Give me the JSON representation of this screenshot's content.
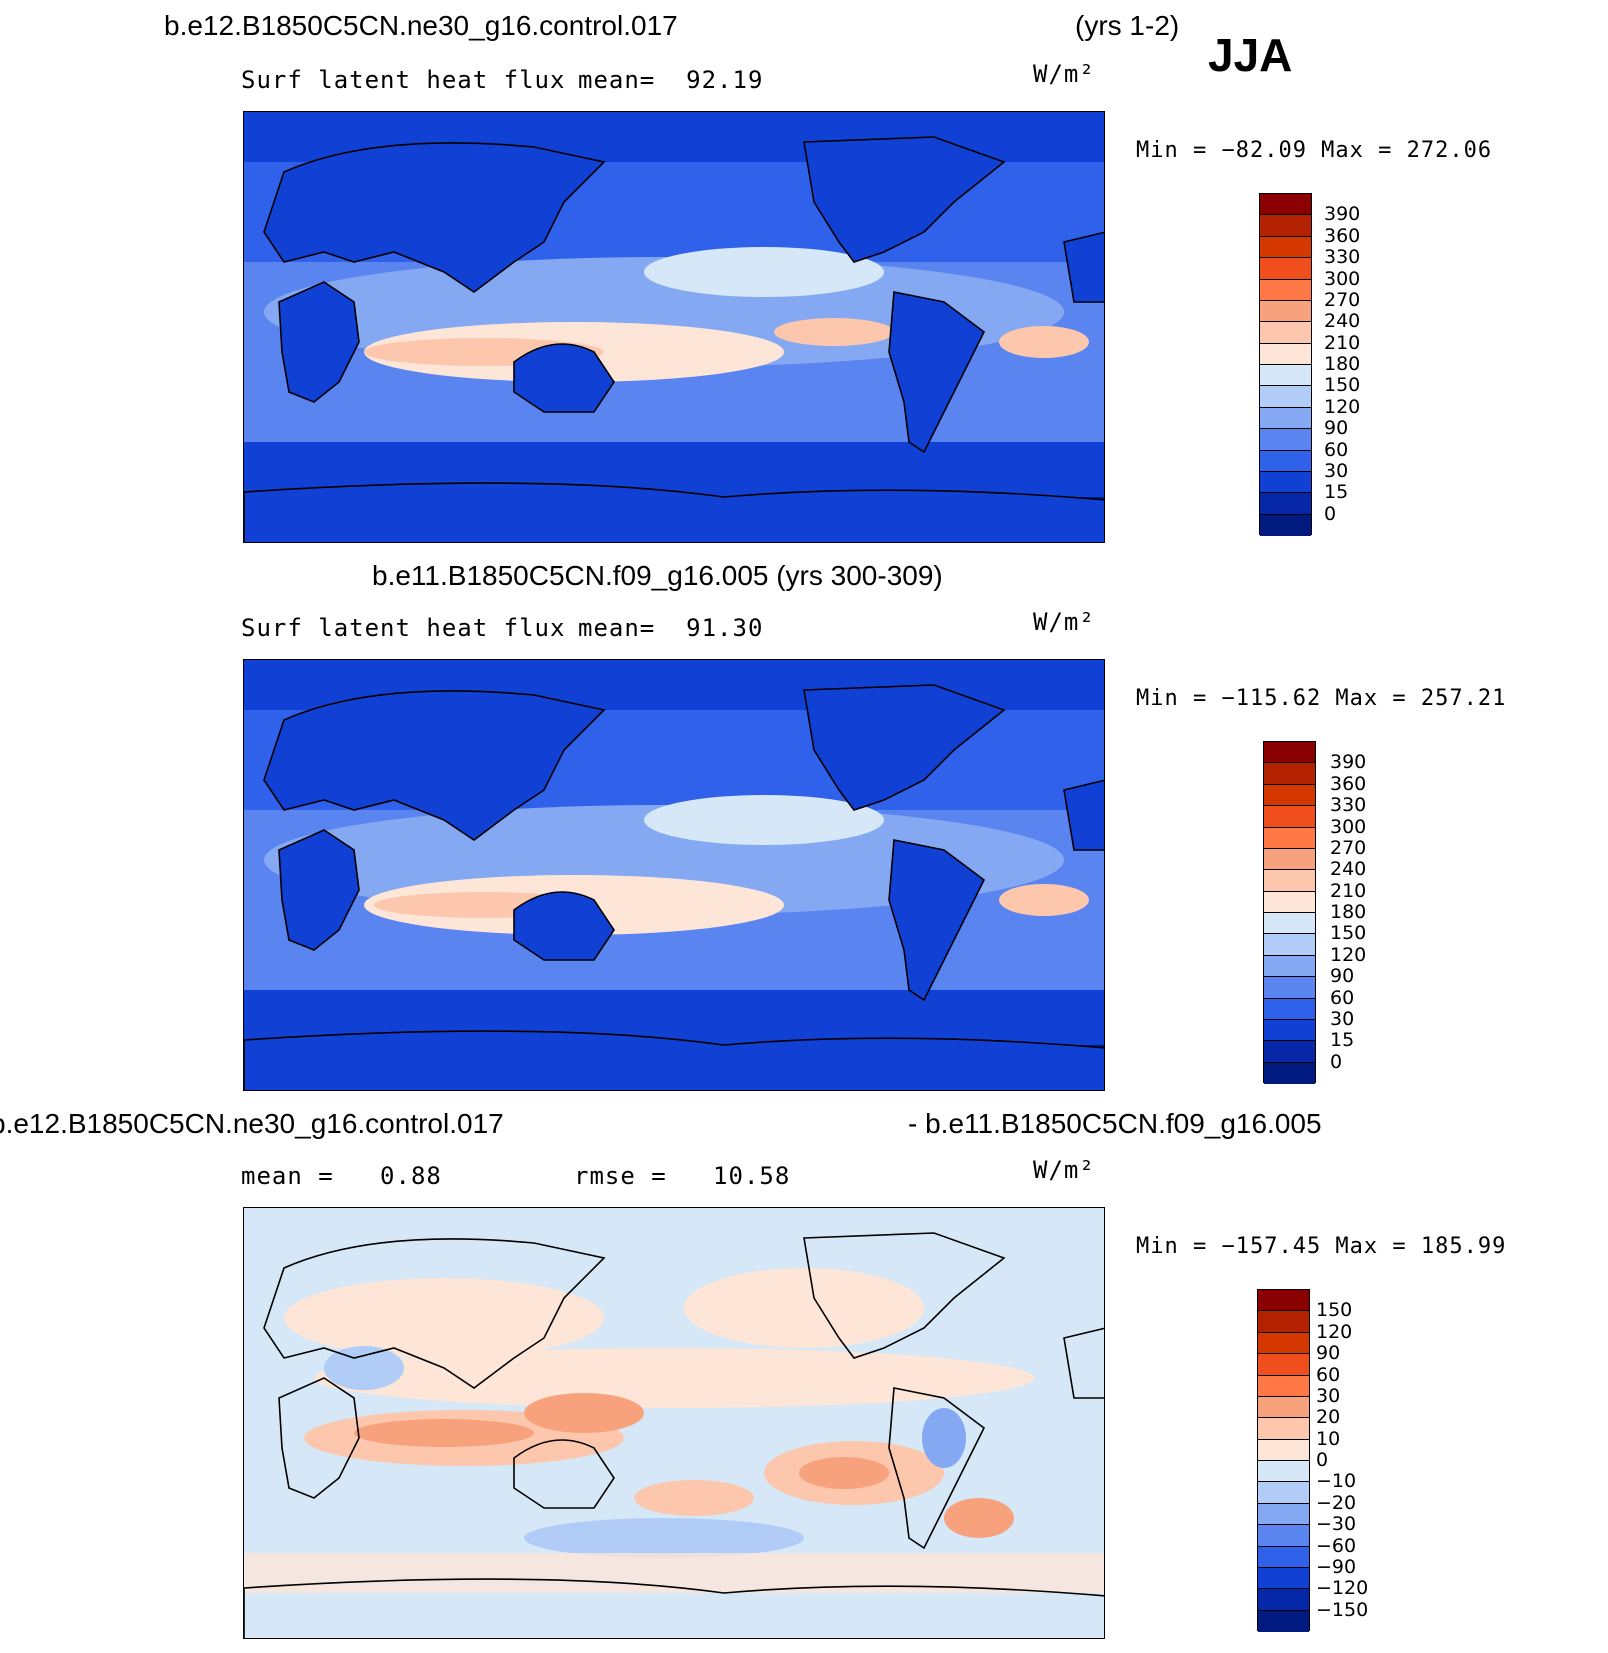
{
  "header": {
    "case_name": "b.e12.B1850C5CN.ne30_g16.control.017",
    "years": "(yrs 1-2)",
    "season": "JJA"
  },
  "panels": [
    {
      "id": "top",
      "title_left": "Surf latent heat flux",
      "title_mid": "mean=  92.19",
      "units": "W/m²",
      "minmax": "Min = −82.09 Max = 272.06",
      "colorbar": {
        "labels": [
          "390",
          "360",
          "330",
          "300",
          "270",
          "240",
          "210",
          "180",
          "150",
          "120",
          "90",
          "60",
          "30",
          "15",
          "0"
        ],
        "colors": [
          "#8b0000",
          "#b22200",
          "#d43700",
          "#f04e1c",
          "#ff7846",
          "#f7a27c",
          "#fcc7ad",
          "#fde6d8",
          "#d6e8f8",
          "#b1cdf7",
          "#85a8f3",
          "#5a84ef",
          "#3061ea",
          "#1140d4",
          "#0527a8",
          "#001a80"
        ]
      },
      "sub_caption": "b.e11.B1850C5CN.f09_g16.005 (yrs 300-309)"
    },
    {
      "id": "middle",
      "title_left": "Surf latent heat flux",
      "title_mid": "mean=  91.30",
      "units": "W/m²",
      "minmax": "Min = −115.62 Max = 257.21",
      "colorbar": {
        "labels": [
          "390",
          "360",
          "330",
          "300",
          "270",
          "240",
          "210",
          "180",
          "150",
          "120",
          "90",
          "60",
          "30",
          "15",
          "0"
        ],
        "colors": [
          "#8b0000",
          "#b22200",
          "#d43700",
          "#f04e1c",
          "#ff7846",
          "#f7a27c",
          "#fcc7ad",
          "#fde6d8",
          "#d6e8f8",
          "#b1cdf7",
          "#85a8f3",
          "#5a84ef",
          "#3061ea",
          "#1140d4",
          "#0527a8",
          "#001a80"
        ]
      }
    },
    {
      "id": "bottom",
      "diff_caption_left": "b.e12.B1850C5CN.ne30_g16.control.017",
      "diff_caption_right": "- b.e11.B1850C5CN.f09_g16.005",
      "title_left": "mean =   0.88",
      "title_mid": "rmse =   10.58",
      "units": "W/m²",
      "minmax": "Min = −157.45 Max = 185.99",
      "colorbar": {
        "labels": [
          "150",
          "120",
          "90",
          "60",
          "30",
          "20",
          "10",
          "0",
          "−10",
          "−20",
          "−30",
          "−60",
          "−90",
          "−120",
          "−150"
        ],
        "colors": [
          "#8b0000",
          "#b22200",
          "#d43700",
          "#f04e1c",
          "#ff7846",
          "#f7a27c",
          "#fcc7ad",
          "#fde6d8",
          "#d6e8f8",
          "#b1cdf7",
          "#85a8f3",
          "#5a84ef",
          "#3061ea",
          "#1140d4",
          "#0527a8",
          "#001a80"
        ]
      }
    }
  ]
}
